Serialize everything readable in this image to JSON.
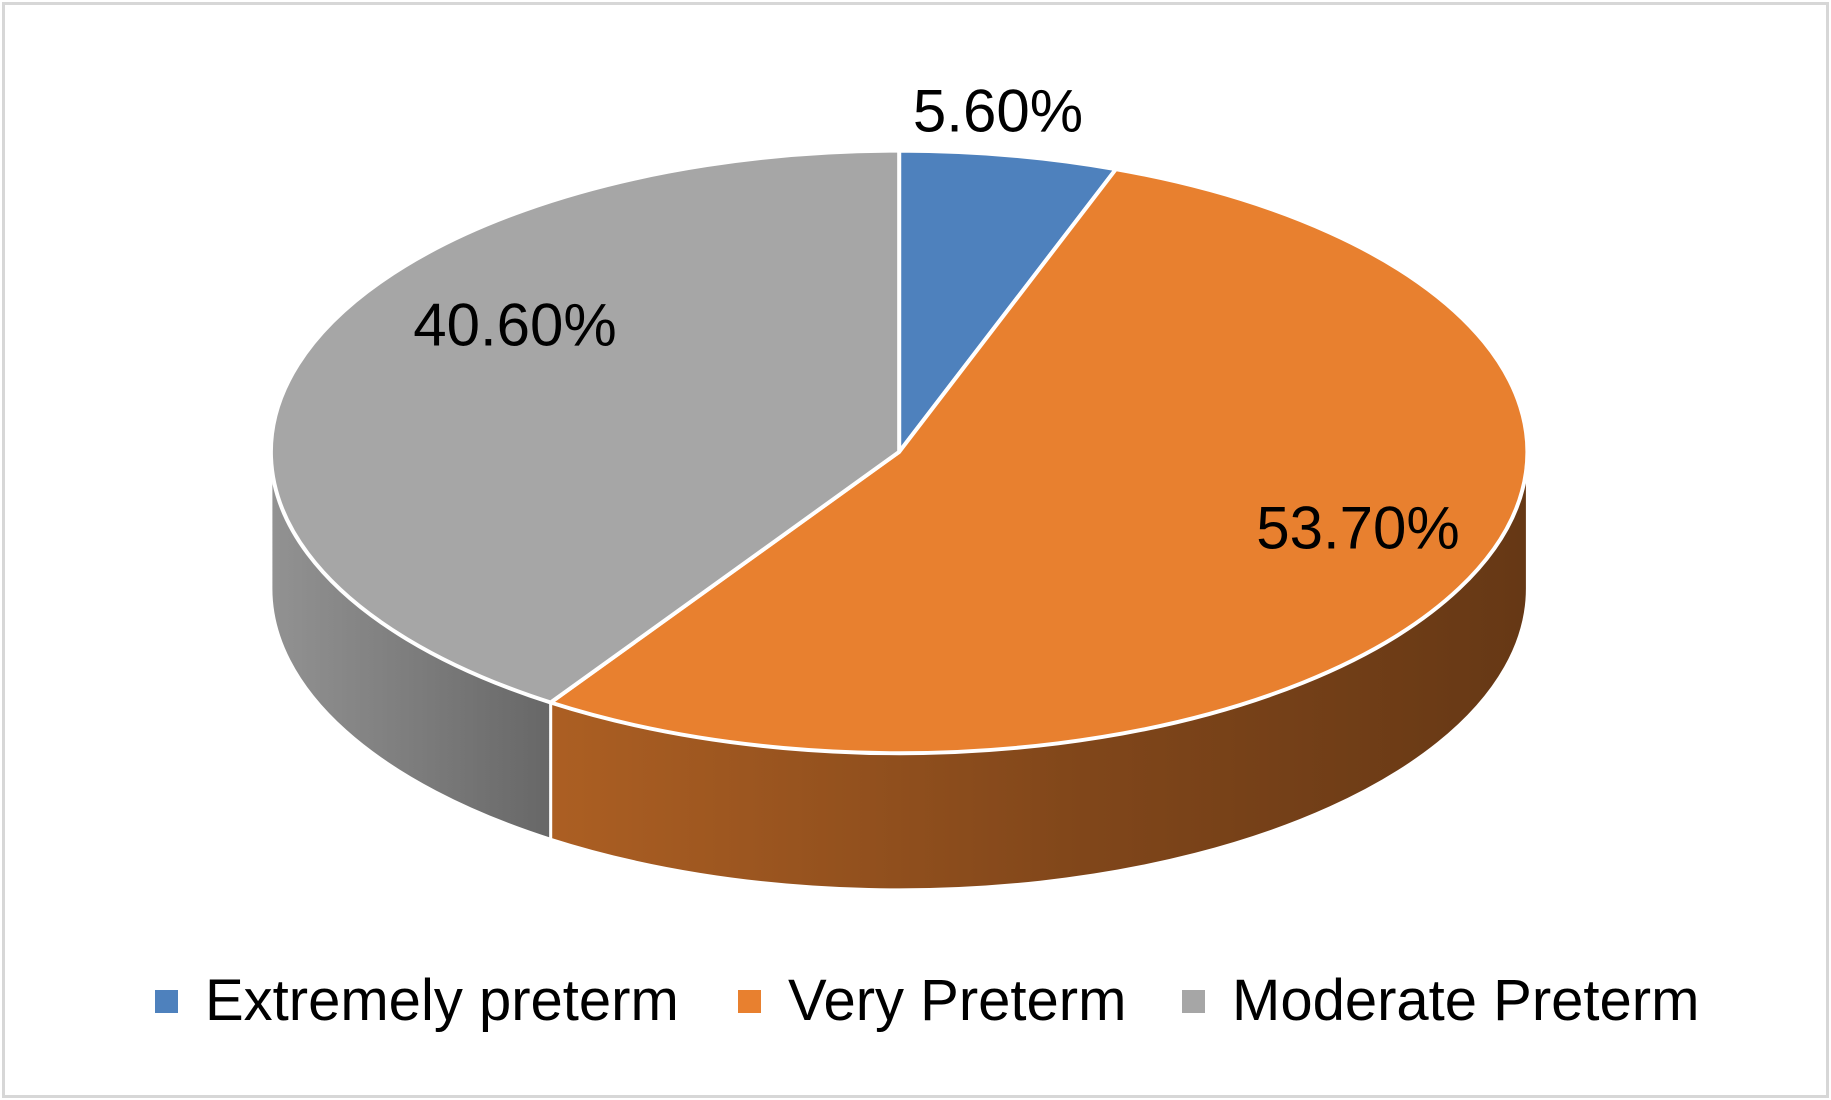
{
  "chart_data": {
    "type": "pie",
    "effect": "3d",
    "title": "",
    "categories": [
      "Extremely preterm",
      "Very Preterm",
      "Moderate Preterm"
    ],
    "values": [
      5.6,
      53.7,
      40.6
    ],
    "data_labels": [
      "5.60%",
      "53.70%",
      "40.60%"
    ],
    "colors": [
      "#4E81BD",
      "#E8802F",
      "#A6A6A6"
    ],
    "start_angle_deg": 0,
    "direction": "clockwise",
    "legend_position": "bottom"
  },
  "legend": {
    "items": [
      {
        "label": "Extremely preterm",
        "color": "#4E81BD"
      },
      {
        "label": "Very Preterm",
        "color": "#E8802F"
      },
      {
        "label": "Moderate Preterm",
        "color": "#A6A6A6"
      }
    ]
  }
}
